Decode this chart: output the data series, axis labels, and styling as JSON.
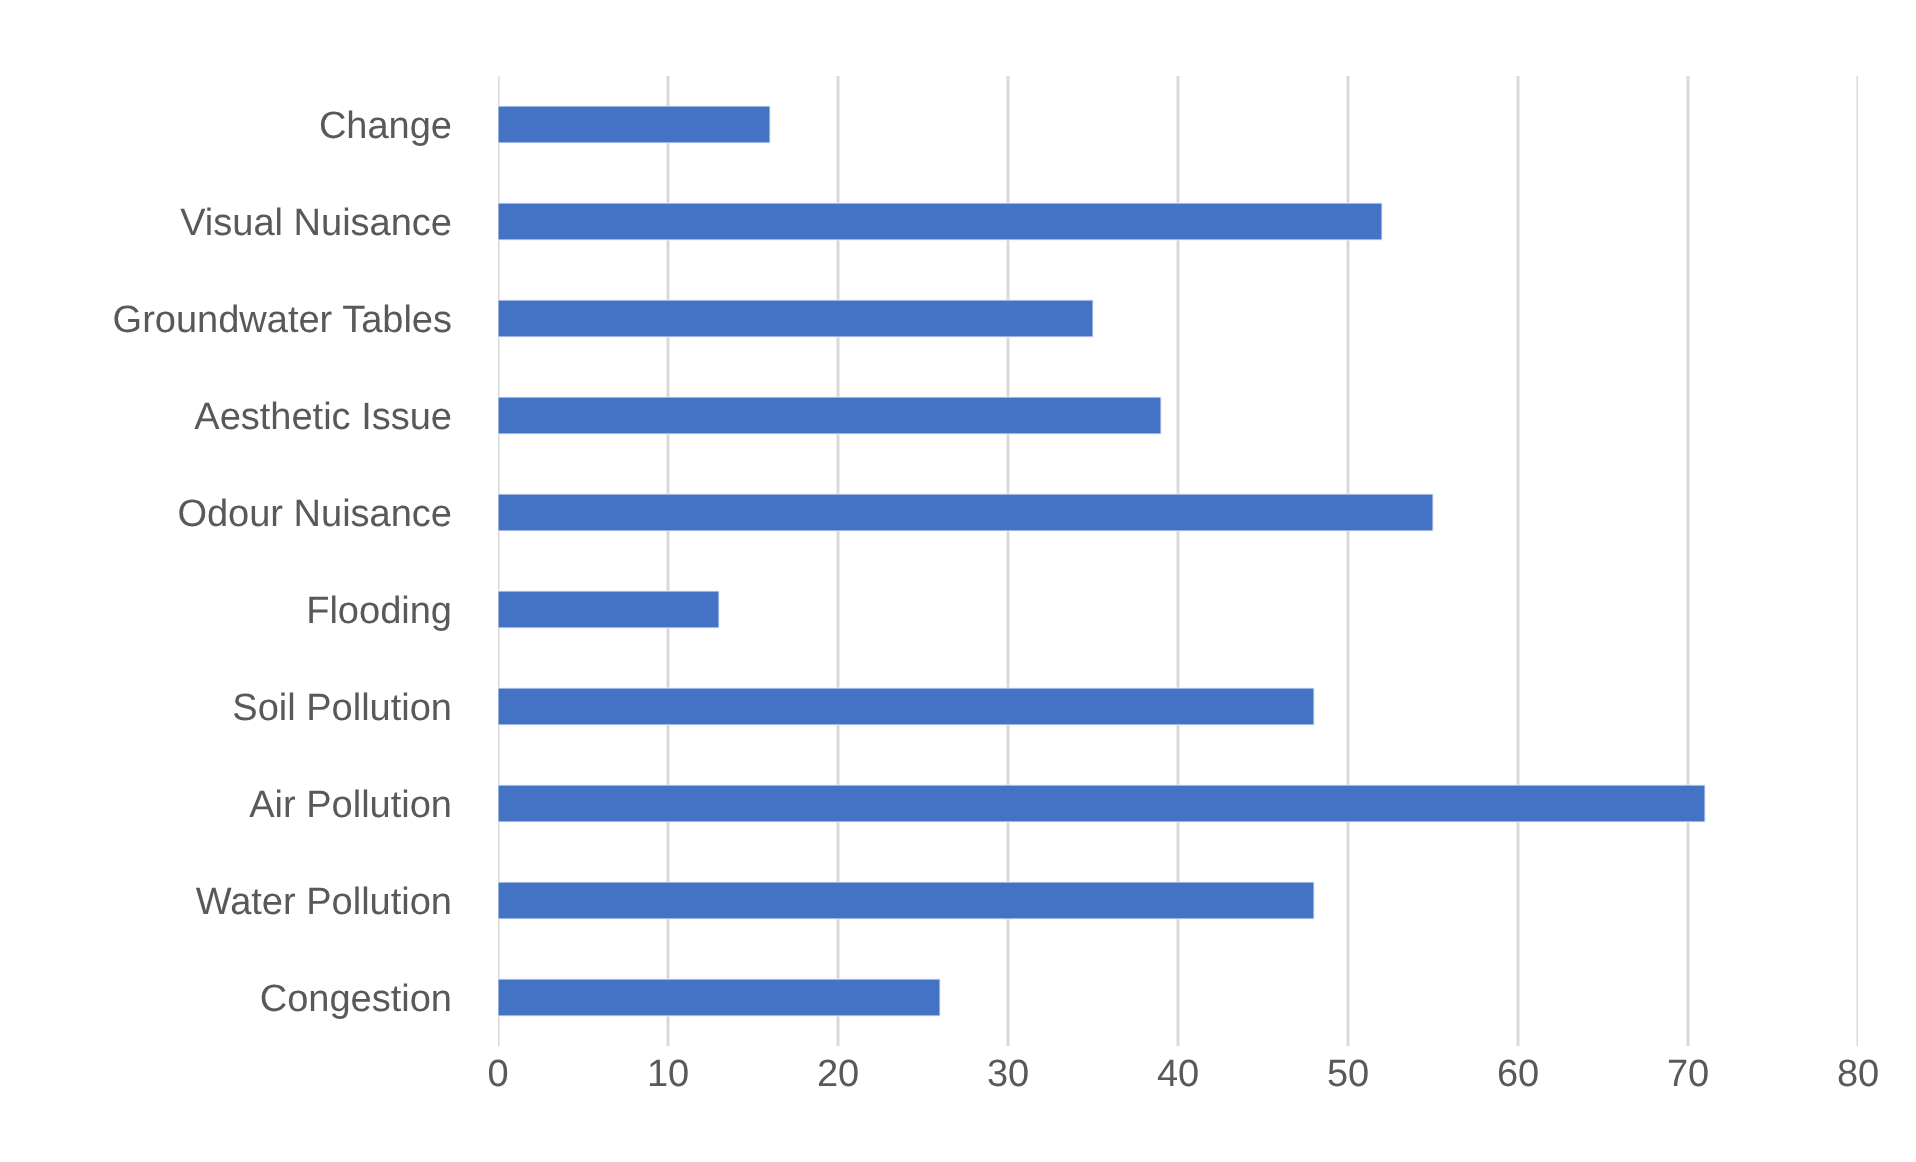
{
  "chart_data": {
    "type": "bar",
    "orientation": "horizontal",
    "categories": [
      "Change",
      "Visual Nuisance",
      "Groundwater Tables",
      "Aesthetic Issue",
      "Odour Nuisance",
      "Flooding",
      "Soil Pollution",
      "Air Pollution",
      "Water Pollution",
      "Congestion"
    ],
    "values": [
      16,
      52,
      35,
      39,
      55,
      13,
      48,
      71,
      48,
      26
    ],
    "color": "#4472c4",
    "xlim": [
      0,
      80
    ],
    "xticks": [
      0,
      10,
      20,
      30,
      40,
      50,
      60,
      70,
      80
    ],
    "grid": "x"
  }
}
